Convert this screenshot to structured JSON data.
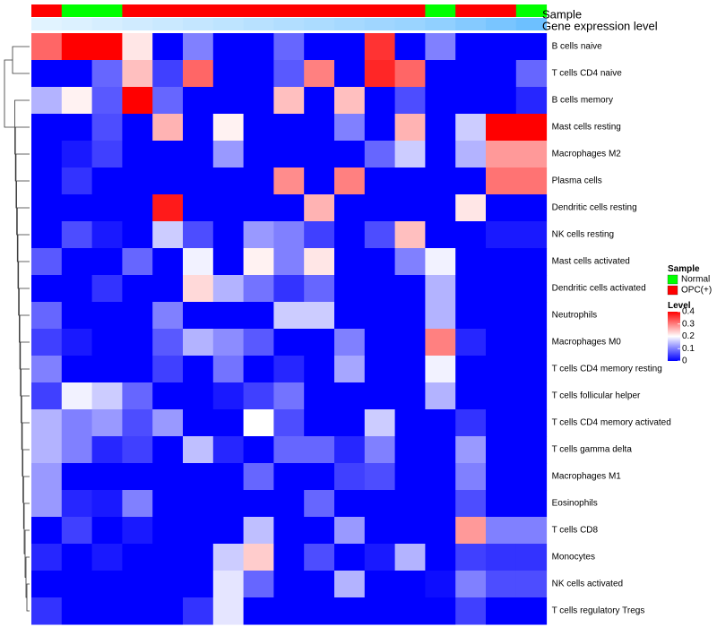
{
  "chart_data": {
    "type": "heatmap",
    "title": "",
    "annotation_labels": {
      "sample": "Sample",
      "expression": "Gene expression level"
    },
    "sample_groups": [
      "OPC(+)",
      "Normal",
      "Normal",
      "OPC(+)",
      "OPC(+)",
      "OPC(+)",
      "OPC(+)",
      "OPC(+)",
      "OPC(+)",
      "OPC(+)",
      "OPC(+)",
      "OPC(+)",
      "OPC(+)",
      "Normal",
      "OPC(+)",
      "OPC(+)",
      "Normal"
    ],
    "expression_levels": [
      0.05,
      0.08,
      0.12,
      0.16,
      0.2,
      0.24,
      0.28,
      0.32,
      0.36,
      0.4,
      0.44,
      0.48,
      0.52,
      0.58,
      0.66,
      0.74,
      0.82
    ],
    "rows": [
      "B cells naive",
      "T cells CD4 naive",
      "B cells memory",
      "Mast cells resting",
      "Macrophages M2",
      "Plasma cells",
      "Dendritic cells resting",
      "NK cells resting",
      "Mast cells activated",
      "Dendritic cells activated",
      "Neutrophils",
      "Macrophages M0",
      "T cells CD4 memory resting",
      "T cells follicular helper",
      "T cells CD4 memory activated",
      "T cells gamma delta",
      "Macrophages M1",
      "Eosinophils",
      "T cells CD8",
      "Monocytes",
      "NK cells activated",
      "T cells regulatory  Tregs"
    ],
    "values": [
      [
        0.32,
        0.4,
        0.4,
        0.22,
        0.0,
        0.1,
        0.0,
        0.0,
        0.08,
        0.0,
        0.0,
        0.36,
        0.0,
        0.1,
        0.0,
        0.0,
        0.0
      ],
      [
        0.0,
        0.0,
        0.08,
        0.25,
        0.05,
        0.32,
        0.0,
        0.0,
        0.07,
        0.3,
        0.0,
        0.37,
        0.32,
        0.0,
        0.0,
        0.0,
        0.08
      ],
      [
        0.14,
        0.21,
        0.07,
        0.4,
        0.08,
        0.0,
        0.0,
        0.0,
        0.25,
        0.0,
        0.25,
        0.0,
        0.06,
        0.0,
        0.0,
        0.0,
        0.03
      ],
      [
        0.0,
        0.0,
        0.06,
        0.0,
        0.26,
        0.0,
        0.21,
        0.0,
        0.0,
        0.0,
        0.1,
        0.0,
        0.26,
        0.0,
        0.16,
        0.4,
        0.4
      ],
      [
        0.0,
        0.02,
        0.05,
        0.0,
        0.0,
        0.0,
        0.12,
        0.0,
        0.0,
        0.0,
        0.0,
        0.08,
        0.16,
        0.0,
        0.14,
        0.28,
        0.28
      ],
      [
        0.0,
        0.04,
        0.0,
        0.0,
        0.0,
        0.0,
        0.0,
        0.0,
        0.29,
        0.0,
        0.3,
        0.0,
        0.0,
        0.0,
        0.0,
        0.31,
        0.31
      ],
      [
        0.0,
        0.0,
        0.0,
        0.0,
        0.38,
        0.0,
        0.0,
        0.0,
        0.0,
        0.26,
        0.0,
        0.0,
        0.0,
        0.0,
        0.22,
        0.0,
        0.0
      ],
      [
        0.0,
        0.06,
        0.02,
        0.0,
        0.16,
        0.06,
        0.0,
        0.12,
        0.1,
        0.05,
        0.0,
        0.06,
        0.25,
        0.0,
        0.0,
        0.02,
        0.02
      ],
      [
        0.07,
        0.0,
        0.0,
        0.08,
        0.0,
        0.19,
        0.0,
        0.21,
        0.1,
        0.22,
        0.0,
        0.0,
        0.1,
        0.19,
        0.0,
        0.0,
        0.0
      ],
      [
        0.0,
        0.0,
        0.04,
        0.0,
        0.0,
        0.23,
        0.14,
        0.09,
        0.04,
        0.08,
        0.0,
        0.0,
        0.0,
        0.14,
        0.0,
        0.0,
        0.0
      ],
      [
        0.08,
        0.0,
        0.0,
        0.0,
        0.1,
        0.0,
        0.0,
        0.0,
        0.16,
        0.16,
        0.0,
        0.0,
        0.0,
        0.14,
        0.0,
        0.0,
        0.0
      ],
      [
        0.05,
        0.02,
        0.0,
        0.0,
        0.07,
        0.14,
        0.11,
        0.07,
        0.0,
        0.0,
        0.1,
        0.0,
        0.0,
        0.3,
        0.03,
        0.0,
        0.0
      ],
      [
        0.1,
        0.0,
        0.0,
        0.0,
        0.05,
        0.0,
        0.09,
        0.0,
        0.03,
        0.0,
        0.13,
        0.0,
        0.0,
        0.19,
        0.0,
        0.0,
        0.0
      ],
      [
        0.05,
        0.19,
        0.16,
        0.08,
        0.0,
        0.0,
        0.02,
        0.05,
        0.09,
        0.0,
        0.0,
        0.0,
        0.0,
        0.14,
        0.0,
        0.0,
        0.0
      ],
      [
        0.14,
        0.1,
        0.12,
        0.06,
        0.12,
        0.0,
        0.0,
        0.2,
        0.06,
        0.0,
        0.0,
        0.16,
        0.0,
        0.0,
        0.04,
        0.0,
        0.0
      ],
      [
        0.14,
        0.1,
        0.03,
        0.05,
        0.0,
        0.15,
        0.03,
        0.0,
        0.08,
        0.08,
        0.03,
        0.1,
        0.0,
        0.0,
        0.12,
        0.0,
        0.0
      ],
      [
        0.12,
        0.0,
        0.0,
        0.0,
        0.0,
        0.0,
        0.0,
        0.08,
        0.0,
        0.0,
        0.05,
        0.06,
        0.0,
        0.0,
        0.1,
        0.0,
        0.0
      ],
      [
        0.12,
        0.03,
        0.02,
        0.1,
        0.0,
        0.0,
        0.0,
        0.0,
        0.0,
        0.08,
        0.0,
        0.0,
        0.0,
        0.0,
        0.06,
        0.0,
        0.0
      ],
      [
        0.0,
        0.05,
        0.0,
        0.02,
        0.0,
        0.0,
        0.0,
        0.15,
        0.0,
        0.0,
        0.12,
        0.0,
        0.0,
        0.0,
        0.28,
        0.1,
        0.1
      ],
      [
        0.03,
        0.0,
        0.02,
        0.0,
        0.0,
        0.0,
        0.16,
        0.24,
        0.0,
        0.06,
        0.0,
        0.02,
        0.14,
        0.0,
        0.05,
        0.04,
        0.04
      ],
      [
        0.0,
        0.0,
        0.0,
        0.0,
        0.0,
        0.0,
        0.18,
        0.08,
        0.0,
        0.0,
        0.14,
        0.0,
        0.0,
        0.01,
        0.1,
        0.06,
        0.06
      ],
      [
        0.04,
        0.0,
        0.0,
        0.0,
        0.0,
        0.04,
        0.18,
        0.0,
        0.0,
        0.0,
        0.0,
        0.0,
        0.0,
        0.0,
        0.05,
        0.0,
        0.0
      ]
    ],
    "legend": {
      "sample_title": "Sample",
      "sample_entries": [
        {
          "label": "Normal",
          "color": "#00ff00"
        },
        {
          "label": "OPC(+)",
          "color": "#ff0000"
        }
      ],
      "level_title": "Level",
      "level_ticks": [
        "0.4",
        "0.3",
        "0.2",
        "0.1",
        "0"
      ],
      "level_tick_values": [
        0.4,
        0.3,
        0.2,
        0.1,
        0
      ]
    },
    "color_scale": {
      "low": "#0000ff",
      "mid": "#ffffff",
      "high": "#ff0000",
      "min": 0,
      "max": 0.4
    },
    "expression_scale": {
      "low": "#e8f6ff",
      "high": "#52b4ff"
    }
  }
}
